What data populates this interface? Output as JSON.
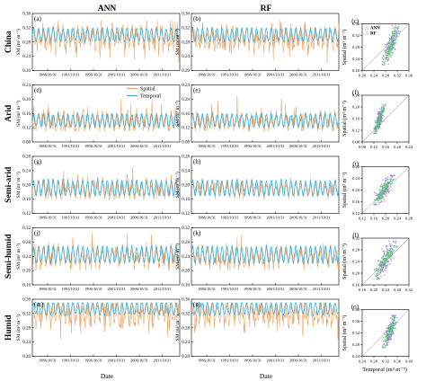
{
  "figure": {
    "column_titles": [
      "ANN",
      "RF"
    ],
    "x_label_timeseries": "Date",
    "x_label_scatter": "Temporal (m³ m⁻³)",
    "y_label_timeseries": "SM (m³ m⁻³)",
    "y_label_scatter": "Spatial (m³ m⁻³)",
    "legend_timeseries": [
      "Spatial",
      "Temporal"
    ],
    "legend_scatter": [
      "ANN",
      "RF"
    ],
    "date_ticks": [
      "1986/10/31",
      "1991/10/31",
      "1996/10/31",
      "2001/10/31",
      "2006/10/31",
      "2011/10/31"
    ],
    "colors": {
      "spatial": "#f4a15d",
      "temporal": "#3ab4e3",
      "ann": "#a46be0",
      "rf": "#3de35a",
      "one_to_one": "#888888"
    }
  },
  "chart_data": [
    {
      "region": "China",
      "type": "line",
      "panels": [
        {
          "panel": "(a)",
          "model": "ANN",
          "ylim": [
            0.2,
            0.36
          ],
          "yticks": [
            0.2,
            0.24,
            0.28,
            0.32,
            0.36
          ],
          "series": [
            {
              "name": "Spatial",
              "center": 0.29,
              "range": [
                0.22,
                0.34
              ]
            },
            {
              "name": "Temporal",
              "center": 0.3,
              "range": [
                0.28,
                0.32
              ]
            }
          ]
        },
        {
          "panel": "(b)",
          "model": "RF",
          "ylim": [
            0.2,
            0.36
          ],
          "yticks": [
            0.2,
            0.24,
            0.28,
            0.32,
            0.36
          ],
          "series": [
            {
              "name": "Spatial",
              "center": 0.29,
              "range": [
                0.22,
                0.34
              ]
            },
            {
              "name": "Temporal",
              "center": 0.3,
              "range": [
                0.28,
                0.32
              ]
            }
          ]
        },
        {
          "panel": "(c)",
          "type": "scatter",
          "xlim": [
            0.2,
            0.36
          ],
          "ylim": [
            0.2,
            0.36
          ],
          "xticks": [
            "0.20",
            "0.24",
            "0.28",
            "0.32",
            "0.36"
          ],
          "yticks": [
            "0.20",
            "0.24",
            "0.28",
            "0.32",
            "0.36"
          ],
          "cloud": {
            "x_range": [
              0.27,
              0.33
            ],
            "y_range": [
              0.22,
              0.36
            ]
          }
        }
      ]
    },
    {
      "region": "Arid",
      "type": "line",
      "panels": [
        {
          "panel": "(d)",
          "model": "ANN",
          "ylim": [
            0.08,
            0.24
          ],
          "yticks": [
            0.08,
            0.12,
            0.16,
            0.2,
            0.24
          ],
          "series": [
            {
              "name": "Spatial",
              "center": 0.14,
              "range": [
                0.11,
                0.22
              ]
            },
            {
              "name": "Temporal",
              "center": 0.14,
              "range": [
                0.12,
                0.16
              ]
            }
          ]
        },
        {
          "panel": "(e)",
          "model": "RF",
          "ylim": [
            0.08,
            0.24
          ],
          "yticks": [
            0.08,
            0.12,
            0.16,
            0.2,
            0.24
          ],
          "series": [
            {
              "name": "Spatial",
              "center": 0.14,
              "range": [
                0.11,
                0.21
              ]
            },
            {
              "name": "Temporal",
              "center": 0.14,
              "range": [
                0.12,
                0.16
              ]
            }
          ]
        },
        {
          "panel": "(f)",
          "type": "scatter",
          "xlim": [
            0.08,
            0.24
          ],
          "ylim": [
            0.08,
            0.24
          ],
          "xticks": [
            "0.08",
            "0.12",
            "0.16",
            "0.20",
            "0.24"
          ],
          "yticks": [
            "0.08",
            "0.12",
            "0.16",
            "0.20",
            "0.24"
          ],
          "cloud": {
            "x_range": [
              0.12,
              0.16
            ],
            "y_range": [
              0.11,
              0.21
            ]
          }
        }
      ]
    },
    {
      "region": "Semi-arid",
      "type": "line",
      "panels": [
        {
          "panel": "(g)",
          "model": "ANN",
          "ylim": [
            0.12,
            0.28
          ],
          "yticks": [
            0.12,
            0.16,
            0.2,
            0.24,
            0.28
          ],
          "series": [
            {
              "name": "Spatial",
              "center": 0.19,
              "range": [
                0.16,
                0.26
              ]
            },
            {
              "name": "Temporal",
              "center": 0.19,
              "range": [
                0.17,
                0.22
              ]
            }
          ]
        },
        {
          "panel": "(h)",
          "model": "RF",
          "ylim": [
            0.12,
            0.28
          ],
          "yticks": [
            0.12,
            0.16,
            0.2,
            0.24,
            0.28
          ],
          "series": [
            {
              "name": "Spatial",
              "center": 0.19,
              "range": [
                0.16,
                0.24
              ]
            },
            {
              "name": "Temporal",
              "center": 0.19,
              "range": [
                0.17,
                0.22
              ]
            }
          ]
        },
        {
          "panel": "(i)",
          "type": "scatter",
          "xlim": [
            0.12,
            0.28
          ],
          "ylim": [
            0.12,
            0.28
          ],
          "xticks": [
            "0.12",
            "0.16",
            "0.20",
            "0.24",
            "0.28"
          ],
          "yticks": [
            "0.12",
            "0.16",
            "0.20",
            "0.24",
            "0.28"
          ],
          "cloud": {
            "x_range": [
              0.16,
              0.23
            ],
            "y_range": [
              0.15,
              0.25
            ]
          }
        }
      ]
    },
    {
      "region": "Semi-humid",
      "type": "line",
      "panels": [
        {
          "panel": "(j)",
          "model": "ANN",
          "ylim": [
            0.16,
            0.32
          ],
          "yticks": [
            0.16,
            0.2,
            0.24,
            0.28,
            0.32
          ],
          "series": [
            {
              "name": "Spatial",
              "center": 0.24,
              "range": [
                0.2,
                0.31
              ]
            },
            {
              "name": "Temporal",
              "center": 0.245,
              "range": [
                0.22,
                0.27
              ]
            }
          ]
        },
        {
          "panel": "(k)",
          "model": "RF",
          "ylim": [
            0.16,
            0.32
          ],
          "yticks": [
            0.16,
            0.2,
            0.24,
            0.28,
            0.32
          ],
          "series": [
            {
              "name": "Spatial",
              "center": 0.24,
              "range": [
                0.2,
                0.3
              ]
            },
            {
              "name": "Temporal",
              "center": 0.245,
              "range": [
                0.22,
                0.27
              ]
            }
          ]
        },
        {
          "panel": "(l)",
          "type": "scatter",
          "xlim": [
            0.16,
            0.32
          ],
          "ylim": [
            0.16,
            0.32
          ],
          "xticks": [
            "0.16",
            "0.20",
            "0.24",
            "0.28",
            "0.32"
          ],
          "yticks": [
            "0.16",
            "0.20",
            "0.24",
            "0.28",
            "0.32"
          ],
          "cloud": {
            "x_range": [
              0.2,
              0.28
            ],
            "y_range": [
              0.18,
              0.31
            ]
          }
        }
      ]
    },
    {
      "region": "Humid",
      "type": "line",
      "panels": [
        {
          "panel": "(m)",
          "model": "ANN",
          "ylim": [
            0.2,
            0.36
          ],
          "yticks": [
            0.2,
            0.24,
            0.28,
            0.32,
            0.36
          ],
          "series": [
            {
              "name": "Spatial",
              "center": 0.32,
              "range": [
                0.21,
                0.35
              ]
            },
            {
              "name": "Temporal",
              "center": 0.335,
              "range": [
                0.31,
                0.35
              ]
            }
          ]
        },
        {
          "panel": "(n)",
          "model": "RF",
          "ylim": [
            0.2,
            0.36
          ],
          "yticks": [
            0.2,
            0.24,
            0.28,
            0.32,
            0.36
          ],
          "series": [
            {
              "name": "Spatial",
              "center": 0.32,
              "range": [
                0.21,
                0.35
              ]
            },
            {
              "name": "Temporal",
              "center": 0.335,
              "range": [
                0.31,
                0.35
              ]
            }
          ]
        },
        {
          "panel": "(o)",
          "type": "scatter",
          "xlim": [
            0.24,
            0.4
          ],
          "ylim": [
            0.24,
            0.4
          ],
          "xticks": [
            "0.24",
            "0.28",
            "0.32",
            "0.36",
            "0.40"
          ],
          "yticks": [
            "0.24",
            "0.28",
            "0.32",
            "0.36",
            "0.40"
          ],
          "cloud": {
            "x_range": [
              0.31,
              0.36
            ],
            "y_range": [
              0.27,
              0.38
            ]
          }
        }
      ]
    }
  ]
}
